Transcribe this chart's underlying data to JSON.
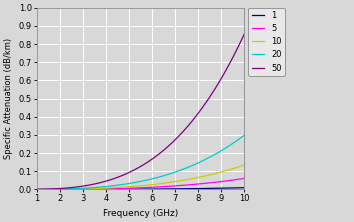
{
  "title": "",
  "xlabel": "Frequency (GHz)",
  "ylabel": "Specific Attenuation (dB/km)",
  "xlim": [
    1,
    10
  ],
  "ylim": [
    0,
    1
  ],
  "xticks": [
    1,
    2,
    3,
    4,
    5,
    6,
    7,
    8,
    9,
    10
  ],
  "yticks": [
    0,
    0.1,
    0.2,
    0.3,
    0.4,
    0.5,
    0.6,
    0.7,
    0.8,
    0.9,
    1.0
  ],
  "series": [
    {
      "label": "1",
      "color": "#000080",
      "rain_rate": 1
    },
    {
      "label": "5",
      "color": "#FF00FF",
      "rain_rate": 5
    },
    {
      "label": "10",
      "color": "#CCCC00",
      "rain_rate": 10
    },
    {
      "label": "20",
      "color": "#00CCCC",
      "rain_rate": 20
    },
    {
      "label": "50",
      "color": "#800080",
      "rain_rate": 50
    }
  ],
  "bg_color": "#d8d8d8",
  "grid_color": "#ffffff",
  "figsize": [
    3.54,
    2.22
  ],
  "dpi": 100
}
